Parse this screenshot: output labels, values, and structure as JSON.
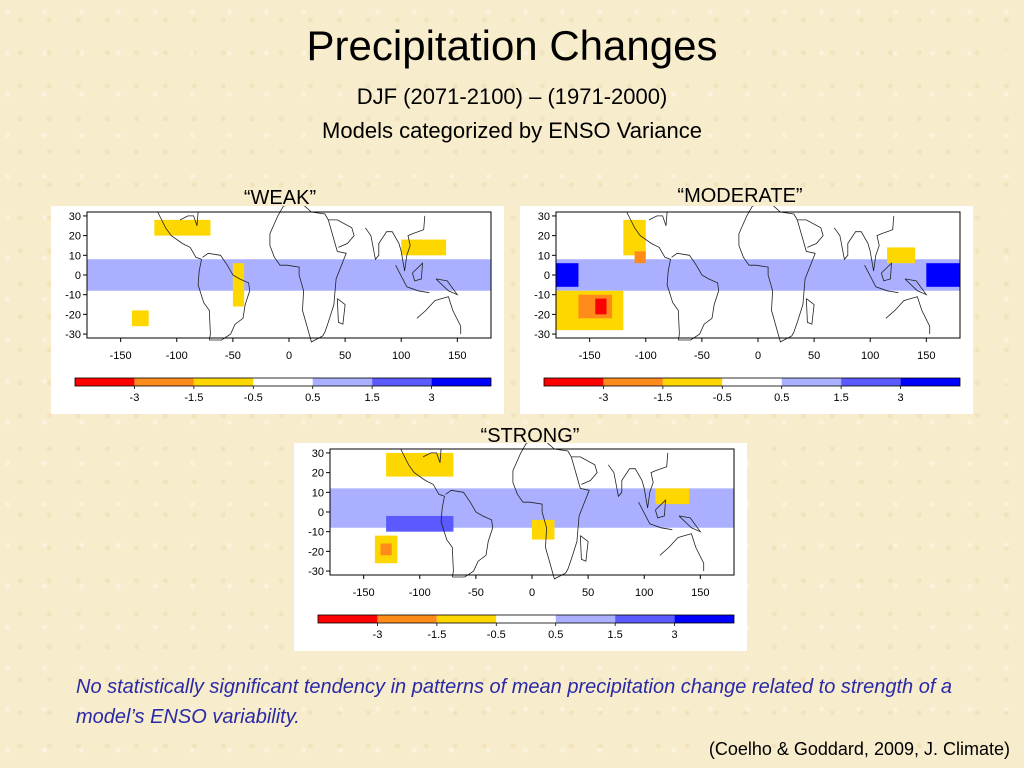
{
  "header": {
    "title": "Precipitation Changes",
    "subtitle1": "DJF (2071-2100) – (1971-2000)",
    "subtitle2": "Models categorized by ENSO Variance"
  },
  "panels": [
    {
      "label": "“WEAK”"
    },
    {
      "label": "“MODERATE”"
    },
    {
      "label": "“STRONG”"
    }
  ],
  "note": "No statistically significant tendency in patterns of mean precipitation change related to strength of a model’s ENSO variability.",
  "citation": "(Coelho & Goddard, 2009, J. Climate)",
  "colors": {
    "neg_strong": "#ff0000",
    "neg_mid": "#ff8c1a",
    "neg_weak": "#ffd700",
    "pos_weak": "#aab0ff",
    "pos_mid": "#5a5aff",
    "pos_strong": "#0000ff",
    "note_text": "#2a2aa8"
  },
  "chart_data": [
    {
      "type": "heatmap",
      "title": "“WEAK”",
      "x_ticks": [
        -150,
        -100,
        -50,
        0,
        50,
        100,
        150
      ],
      "y_ticks": [
        30,
        20,
        10,
        0,
        -10,
        -20,
        -30
      ],
      "xlim": [
        -180,
        180
      ],
      "ylim": [
        -32,
        32
      ],
      "colorbar_ticks": [
        "-3",
        "-1.5",
        "-0.5",
        "0.5",
        "1.5",
        "3"
      ],
      "colorbar_colors": [
        "#ff0000",
        "#ff8c1a",
        "#ffd700",
        "#ffffff",
        "#aab0ff",
        "#5a5aff",
        "#0000ff"
      ],
      "regions": [
        {
          "lon": [
            -180,
            180
          ],
          "lat": [
            -8,
            8
          ],
          "level": 1
        },
        {
          "lon": [
            -120,
            -70
          ],
          "lat": [
            20,
            28
          ],
          "level": -1
        },
        {
          "lon": [
            -50,
            -40
          ],
          "lat": [
            -16,
            6
          ],
          "level": -1
        },
        {
          "lon": [
            100,
            140
          ],
          "lat": [
            10,
            18
          ],
          "level": -1
        },
        {
          "lon": [
            -140,
            -125
          ],
          "lat": [
            -26,
            -18
          ],
          "level": -1
        }
      ]
    },
    {
      "type": "heatmap",
      "title": "“MODERATE”",
      "x_ticks": [
        -150,
        -100,
        -50,
        0,
        50,
        100,
        150
      ],
      "y_ticks": [
        30,
        20,
        10,
        0,
        -10,
        -20,
        -30
      ],
      "xlim": [
        -180,
        180
      ],
      "ylim": [
        -32,
        32
      ],
      "colorbar_ticks": [
        "-3",
        "-1.5",
        "-0.5",
        "0.5",
        "1.5",
        "3"
      ],
      "colorbar_colors": [
        "#ff0000",
        "#ff8c1a",
        "#ffd700",
        "#ffffff",
        "#aab0ff",
        "#5a5aff",
        "#0000ff"
      ],
      "regions": [
        {
          "lon": [
            -180,
            180
          ],
          "lat": [
            -8,
            8
          ],
          "level": 1
        },
        {
          "lon": [
            -180,
            -160
          ],
          "lat": [
            -6,
            6
          ],
          "level": 3
        },
        {
          "lon": [
            150,
            180
          ],
          "lat": [
            -6,
            6
          ],
          "level": 3
        },
        {
          "lon": [
            -180,
            -120
          ],
          "lat": [
            -28,
            -8
          ],
          "level": -1
        },
        {
          "lon": [
            -160,
            -130
          ],
          "lat": [
            -22,
            -10
          ],
          "level": -2
        },
        {
          "lon": [
            -145,
            -135
          ],
          "lat": [
            -20,
            -12
          ],
          "level": -3
        },
        {
          "lon": [
            -120,
            -100
          ],
          "lat": [
            10,
            28
          ],
          "level": -1
        },
        {
          "lon": [
            -110,
            -100
          ],
          "lat": [
            6,
            12
          ],
          "level": -2
        },
        {
          "lon": [
            115,
            140
          ],
          "lat": [
            6,
            14
          ],
          "level": -1
        }
      ]
    },
    {
      "type": "heatmap",
      "title": "“STRONG”",
      "x_ticks": [
        -150,
        -100,
        -50,
        0,
        50,
        100,
        150
      ],
      "y_ticks": [
        30,
        20,
        10,
        0,
        -10,
        -20,
        -30
      ],
      "xlim": [
        -180,
        180
      ],
      "ylim": [
        -32,
        32
      ],
      "colorbar_ticks": [
        "-3",
        "-1.5",
        "-0.5",
        "0.5",
        "1.5",
        "3"
      ],
      "colorbar_colors": [
        "#ff0000",
        "#ff8c1a",
        "#ffd700",
        "#ffffff",
        "#aab0ff",
        "#5a5aff",
        "#0000ff"
      ],
      "regions": [
        {
          "lon": [
            -180,
            180
          ],
          "lat": [
            -8,
            12
          ],
          "level": 1
        },
        {
          "lon": [
            -130,
            -70
          ],
          "lat": [
            -10,
            -2
          ],
          "level": 2
        },
        {
          "lon": [
            -140,
            -120
          ],
          "lat": [
            -26,
            -12
          ],
          "level": -1
        },
        {
          "lon": [
            -135,
            -125
          ],
          "lat": [
            -22,
            -16
          ],
          "level": -2
        },
        {
          "lon": [
            -130,
            -70
          ],
          "lat": [
            18,
            30
          ],
          "level": -1
        },
        {
          "lon": [
            0,
            20
          ],
          "lat": [
            -14,
            -4
          ],
          "level": -1
        },
        {
          "lon": [
            110,
            140
          ],
          "lat": [
            4,
            12
          ],
          "level": -1
        }
      ]
    }
  ]
}
